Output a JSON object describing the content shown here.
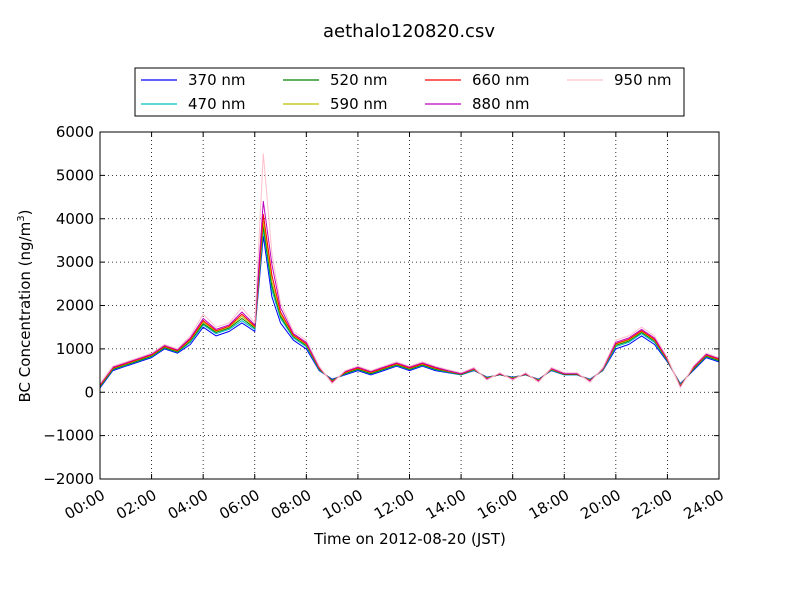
{
  "chart_data": {
    "type": "line",
    "title": "aethalo120820.csv",
    "xlabel": "Time on 2012-08-20 (JST)",
    "ylabel_main": "BC Concentration (ng/m",
    "ylabel_sup": "3",
    "ylabel_close": ")",
    "xlim": [
      "00:00",
      "24:00"
    ],
    "ylim": [
      -2000,
      6000
    ],
    "grid": true,
    "grid_style": "dotted",
    "legend_position": "upper-center",
    "x_ticks": [
      "00:00",
      "02:00",
      "04:00",
      "06:00",
      "08:00",
      "10:00",
      "12:00",
      "14:00",
      "16:00",
      "18:00",
      "20:00",
      "22:00",
      "24:00"
    ],
    "y_ticks": [
      "6000",
      "5000",
      "4000",
      "3000",
      "2000",
      "1000",
      "0",
      "−1000",
      "−2000"
    ],
    "x": [
      "00:00",
      "00:30",
      "01:00",
      "01:30",
      "02:00",
      "02:30",
      "03:00",
      "03:30",
      "04:00",
      "04:30",
      "05:00",
      "05:30",
      "06:00",
      "06:20",
      "06:40",
      "07:00",
      "07:30",
      "08:00",
      "08:30",
      "09:00",
      "09:30",
      "10:00",
      "10:30",
      "11:00",
      "11:30",
      "12:00",
      "12:30",
      "13:00",
      "13:30",
      "14:00",
      "14:30",
      "15:00",
      "15:30",
      "16:00",
      "16:30",
      "17:00",
      "17:30",
      "18:00",
      "18:30",
      "19:00",
      "19:30",
      "20:00",
      "20:30",
      "21:00",
      "21:30",
      "22:00",
      "22:30",
      "23:00",
      "23:30",
      "24:00"
    ],
    "series": [
      {
        "name": "370 nm",
        "color": "#0000ff",
        "values": [
          100,
          500,
          600,
          700,
          800,
          1000,
          900,
          1100,
          1500,
          1300,
          1400,
          1600,
          1400,
          3600,
          2200,
          1600,
          1200,
          1000,
          500,
          300,
          400,
          500,
          400,
          500,
          600,
          500,
          600,
          500,
          450,
          400,
          500,
          350,
          400,
          350,
          400,
          300,
          500,
          400,
          400,
          300,
          500,
          1000,
          1100,
          1300,
          1100,
          700,
          200,
          500,
          800,
          700
        ]
      },
      {
        "name": "470 nm",
        "color": "#00bfbf",
        "values": [
          120,
          520,
          620,
          720,
          820,
          1020,
          920,
          1150,
          1550,
          1350,
          1450,
          1650,
          1450,
          3750,
          2350,
          1700,
          1250,
          1050,
          520,
          280,
          420,
          520,
          420,
          520,
          620,
          520,
          620,
          520,
          460,
          400,
          510,
          340,
          400,
          340,
          400,
          290,
          510,
          400,
          400,
          290,
          510,
          1050,
          1150,
          1350,
          1150,
          720,
          180,
          520,
          820,
          720
        ]
      },
      {
        "name": "520 nm",
        "color": "#008000",
        "values": [
          130,
          530,
          630,
          730,
          830,
          1030,
          930,
          1180,
          1580,
          1380,
          1480,
          1700,
          1480,
          3850,
          2450,
          1750,
          1280,
          1080,
          530,
          270,
          430,
          530,
          430,
          530,
          630,
          530,
          630,
          530,
          470,
          410,
          520,
          330,
          410,
          330,
          410,
          280,
          520,
          410,
          410,
          280,
          520,
          1080,
          1180,
          1380,
          1180,
          730,
          170,
          530,
          830,
          730
        ]
      },
      {
        "name": "590 nm",
        "color": "#bfbf00",
        "values": [
          150,
          550,
          650,
          750,
          850,
          1050,
          950,
          1200,
          1620,
          1400,
          1500,
          1750,
          1500,
          3950,
          2550,
          1800,
          1300,
          1100,
          550,
          250,
          450,
          550,
          450,
          550,
          650,
          550,
          650,
          550,
          480,
          420,
          530,
          320,
          420,
          320,
          420,
          270,
          530,
          420,
          420,
          270,
          530,
          1100,
          1200,
          1400,
          1200,
          750,
          150,
          550,
          850,
          750
        ]
      },
      {
        "name": "660 nm",
        "color": "#ff0000",
        "values": [
          160,
          560,
          660,
          760,
          860,
          1060,
          960,
          1220,
          1650,
          1420,
          1520,
          1800,
          1520,
          4100,
          2700,
          1850,
          1320,
          1120,
          560,
          240,
          460,
          560,
          460,
          560,
          660,
          560,
          660,
          560,
          490,
          420,
          540,
          310,
          420,
          310,
          420,
          260,
          540,
          420,
          420,
          260,
          540,
          1120,
          1220,
          1420,
          1220,
          760,
          140,
          560,
          860,
          760
        ]
      },
      {
        "name": "880 nm",
        "color": "#bf00bf",
        "values": [
          180,
          580,
          680,
          780,
          880,
          1080,
          980,
          1250,
          1700,
          1450,
          1550,
          1850,
          1550,
          4400,
          2950,
          1950,
          1350,
          1150,
          580,
          220,
          480,
          580,
          480,
          580,
          680,
          580,
          680,
          580,
          500,
          430,
          550,
          300,
          430,
          300,
          430,
          250,
          550,
          430,
          430,
          250,
          550,
          1150,
          1250,
          1450,
          1250,
          780,
          120,
          580,
          880,
          780
        ]
      },
      {
        "name": "950 nm",
        "color": "#ffc0cb",
        "values": [
          200,
          600,
          700,
          800,
          900,
          1100,
          1000,
          1300,
          1800,
          1500,
          1600,
          1950,
          1600,
          5500,
          3200,
          2050,
          1400,
          1200,
          600,
          200,
          500,
          600,
          500,
          600,
          700,
          600,
          700,
          600,
          520,
          450,
          570,
          280,
          450,
          280,
          450,
          230,
          570,
          450,
          450,
          230,
          570,
          1200,
          1300,
          1500,
          1300,
          800,
          100,
          600,
          900,
          800
        ]
      }
    ]
  }
}
